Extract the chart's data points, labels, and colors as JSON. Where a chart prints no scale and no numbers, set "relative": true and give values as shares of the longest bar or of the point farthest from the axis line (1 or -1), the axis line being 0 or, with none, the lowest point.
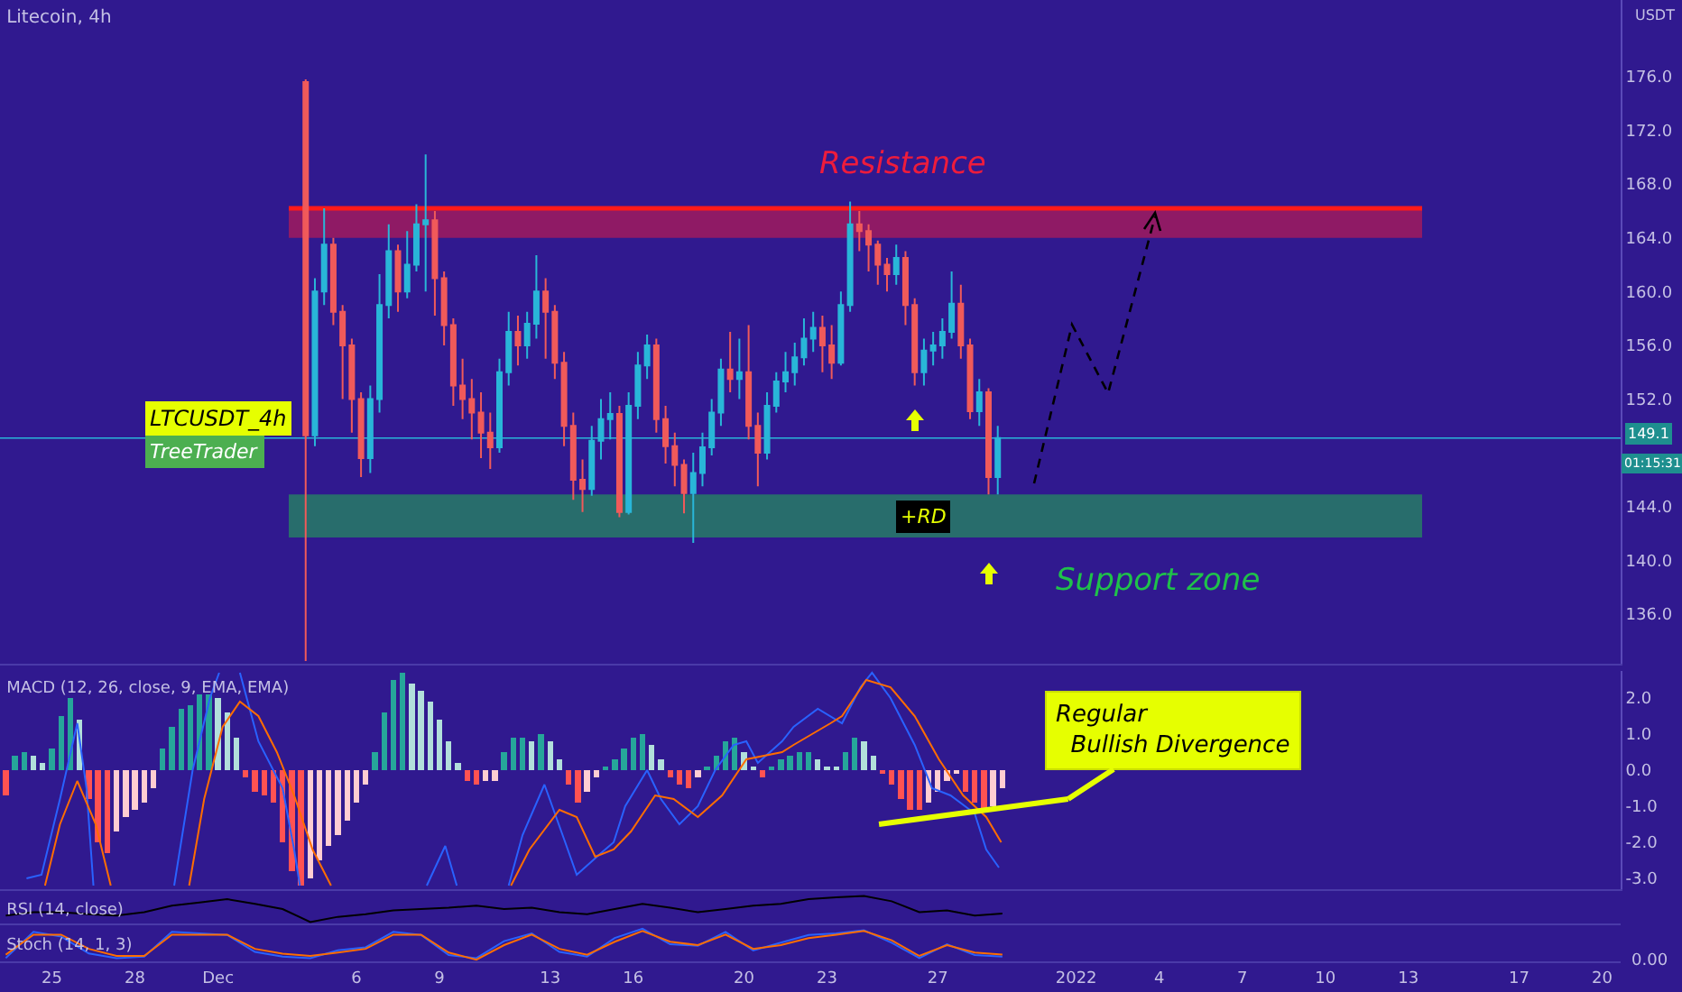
{
  "chart_data": [
    {
      "type": "candlestick",
      "title": "Litecoin, 4h",
      "ylabel": "USDT",
      "tick_labels": "y",
      "xlim": [
        "2021-11-23T03:00",
        "2022-01-20T16:00"
      ],
      "ylim": [
        132.3,
        181.7
      ],
      "yticks": [
        {
          "value": 136,
          "label": "136.0"
        },
        {
          "value": 140,
          "label": "140.0"
        },
        {
          "value": 144,
          "label": "144.0"
        },
        {
          "value": 152,
          "label": "152.0"
        },
        {
          "value": 156,
          "label": "156.0"
        },
        {
          "value": 160,
          "label": "160.0"
        },
        {
          "value": 164,
          "label": "164.0"
        },
        {
          "value": 168,
          "label": "168.0"
        },
        {
          "value": 172,
          "label": "172.0"
        },
        {
          "value": 176,
          "label": "176.0"
        }
      ],
      "x": [
        "2021-12-04T04:00",
        "2021-12-04T12:00",
        "2021-12-04T20:00",
        "2021-12-05T04:00",
        "2021-12-05T12:00",
        "2021-12-05T20:00",
        "2021-12-06T04:00",
        "2021-12-06T12:00",
        "2021-12-06T20:00",
        "2021-12-07T04:00",
        "2021-12-07T12:00",
        "2021-12-07T20:00",
        "2021-12-08T04:00",
        "2021-12-08T12:00",
        "2021-12-08T20:00",
        "2021-12-09T04:00",
        "2021-12-09T12:00",
        "2021-12-09T20:00",
        "2021-12-10T04:00",
        "2021-12-10T12:00",
        "2021-12-10T20:00",
        "2021-12-11T04:00",
        "2021-12-11T12:00",
        "2021-12-11T20:00",
        "2021-12-12T04:00",
        "2021-12-12T12:00",
        "2021-12-12T20:00",
        "2021-12-13T04:00",
        "2021-12-13T12:00",
        "2021-12-13T20:00",
        "2021-12-14T04:00",
        "2021-12-14T12:00",
        "2021-12-14T20:00",
        "2021-12-15T04:00",
        "2021-12-15T12:00",
        "2021-12-15T20:00",
        "2021-12-16T04:00",
        "2021-12-16T12:00",
        "2021-12-16T20:00",
        "2021-12-17T04:00",
        "2021-12-17T12:00",
        "2021-12-17T20:00",
        "2021-12-18T04:00",
        "2021-12-18T12:00",
        "2021-12-18T20:00",
        "2021-12-19T04:00",
        "2021-12-19T12:00",
        "2021-12-19T20:00",
        "2021-12-20T04:00",
        "2021-12-20T12:00",
        "2021-12-20T20:00",
        "2021-12-21T04:00",
        "2021-12-21T12:00",
        "2021-12-21T20:00",
        "2021-12-22T04:00",
        "2021-12-22T12:00",
        "2021-12-22T20:00",
        "2021-12-23T04:00",
        "2021-12-23T12:00",
        "2021-12-23T20:00",
        "2021-12-24T04:00",
        "2021-12-24T12:00",
        "2021-12-24T20:00",
        "2021-12-25T04:00",
        "2021-12-25T12:00",
        "2021-12-25T20:00",
        "2021-12-26T04:00",
        "2021-12-26T12:00",
        "2021-12-26T20:00",
        "2021-12-27T04:00",
        "2021-12-27T12:00",
        "2021-12-27T20:00",
        "2021-12-28T04:00",
        "2021-12-28T12:00",
        "2021-12-28T20:00",
        "2021-12-29T04:00"
      ],
      "ohlc": [
        [
          175.6,
          175.8,
          132.5,
          149.3
        ],
        [
          149.3,
          161,
          148.5,
          160
        ],
        [
          160,
          166.2,
          159,
          163.5
        ],
        [
          163.5,
          164,
          157.5,
          158.5
        ],
        [
          158.5,
          159,
          152,
          156
        ],
        [
          156,
          156.5,
          149.5,
          152
        ],
        [
          152,
          152.5,
          146.2,
          147.6
        ],
        [
          147.6,
          153,
          146.5,
          152
        ],
        [
          152,
          161.3,
          151,
          159
        ],
        [
          159,
          165,
          158,
          163
        ],
        [
          163,
          163.5,
          158.5,
          160
        ],
        [
          160,
          164.5,
          159.5,
          162
        ],
        [
          162,
          166.5,
          161.5,
          165
        ],
        [
          165,
          170.2,
          160,
          165.3
        ],
        [
          165.3,
          166,
          158.2,
          161
        ],
        [
          161,
          161.5,
          156,
          157.5
        ],
        [
          157.5,
          158,
          151.5,
          153
        ],
        [
          153,
          155,
          150.5,
          152
        ],
        [
          152,
          153.5,
          149,
          151
        ],
        [
          151,
          152.5,
          147.6,
          149.5
        ],
        [
          149.5,
          151,
          146.8,
          148.4
        ],
        [
          148.4,
          155,
          148,
          154
        ],
        [
          154,
          158.5,
          153,
          157
        ],
        [
          157,
          158.2,
          154.5,
          156
        ],
        [
          156,
          158.5,
          155,
          157.6
        ],
        [
          157.6,
          162.7,
          156.5,
          160
        ],
        [
          160,
          161,
          155,
          158.5
        ],
        [
          158.5,
          159,
          153.5,
          154.7
        ],
        [
          154.7,
          155.5,
          148.5,
          150
        ],
        [
          150,
          151,
          144.5,
          146
        ],
        [
          146,
          147.5,
          143.6,
          145.3
        ],
        [
          145.3,
          150,
          144.8,
          148.9
        ],
        [
          148.9,
          152,
          147.5,
          150.5
        ],
        [
          150.5,
          152.5,
          149,
          150.9
        ],
        [
          150.9,
          151.5,
          143.2,
          143.6
        ],
        [
          143.6,
          152.5,
          143.4,
          151.5
        ],
        [
          151.5,
          155.5,
          150.5,
          154.5
        ],
        [
          154.5,
          156.8,
          153.5,
          156
        ],
        [
          156,
          156.5,
          149.5,
          150.5
        ],
        [
          150.5,
          151.5,
          147.2,
          148.5
        ],
        [
          148.5,
          149.5,
          145.5,
          147.1
        ],
        [
          147.1,
          147.5,
          143.5,
          145
        ],
        [
          145,
          148,
          141.3,
          146.5
        ],
        [
          146.5,
          149.5,
          145.5,
          148.4
        ],
        [
          148.4,
          152,
          147.8,
          151
        ],
        [
          151,
          155,
          150,
          154.2
        ],
        [
          154.2,
          157,
          152.5,
          153.5
        ],
        [
          153.5,
          156.5,
          152,
          154
        ],
        [
          154,
          157.5,
          149,
          150
        ],
        [
          150,
          151,
          145.5,
          148
        ],
        [
          148,
          152.5,
          147.5,
          151.5
        ],
        [
          151.5,
          154,
          151,
          153.3
        ],
        [
          153.3,
          155.5,
          152.5,
          154
        ],
        [
          154,
          156.2,
          153,
          155.1
        ],
        [
          155.1,
          158,
          154.5,
          156.5
        ],
        [
          156.5,
          158.5,
          155.5,
          157.3
        ],
        [
          157.3,
          158.2,
          154,
          156
        ],
        [
          156,
          157.5,
          153.5,
          154.7
        ],
        [
          154.7,
          160,
          154.5,
          159
        ],
        [
          159,
          166.7,
          158.5,
          165
        ],
        [
          165,
          166,
          163,
          164.5
        ],
        [
          164.5,
          165,
          161.5,
          163.5
        ],
        [
          163.5,
          163.8,
          160.5,
          162
        ],
        [
          162,
          162.5,
          160,
          161.3
        ],
        [
          161.3,
          163.5,
          160.5,
          162.5
        ],
        [
          162.5,
          163,
          157.5,
          159
        ],
        [
          159,
          159.5,
          153,
          154
        ],
        [
          154,
          156.5,
          153,
          155.6
        ],
        [
          155.6,
          157,
          154.5,
          156
        ],
        [
          156,
          158,
          155,
          157
        ],
        [
          157,
          161.5,
          156.5,
          159.1
        ],
        [
          159.1,
          160.5,
          155,
          156
        ],
        [
          156,
          156.5,
          150.5,
          151.1
        ],
        [
          151.1,
          153.5,
          150,
          152.5
        ],
        [
          152.5,
          152.8,
          144.9,
          146.2
        ],
        [
          146.2,
          150,
          144.9,
          149.1
        ]
      ],
      "bands": [
        {
          "axis": "y",
          "from": 164,
          "to": 166.2,
          "label": "Resistance",
          "color": "#ee1c3c"
        },
        {
          "axis": "y",
          "from": 141.7,
          "to": 144.9,
          "label": "Support zone",
          "color": "#1fc24a"
        }
      ],
      "ref_lines": [
        {
          "axis": "y",
          "value": 166.2,
          "color": "#ff1a1a"
        },
        {
          "axis": "y",
          "value": 149.1,
          "label": "149.1",
          "color": "#29b6d8"
        }
      ],
      "annotations": [
        "LTCUSDT_4h",
        "TreeTrader",
        "01:15:31",
        {
          "text": "+RD",
          "x": "2021-12-26T12:00",
          "y": 143.2
        }
      ]
    },
    {
      "type": "bar",
      "title": "MACD (12, 26, close, 9, EMA, EMA)",
      "tick_labels": "y",
      "xlim": [
        "2021-11-23T03:00",
        "2022-01-20T16:00"
      ],
      "ylim": [
        -3.3,
        2.75
      ],
      "yticks": [
        {
          "value": -3,
          "label": "-3.0"
        },
        {
          "value": -2,
          "label": "-2.0"
        },
        {
          "value": -1,
          "label": "-1.0"
        },
        {
          "value": 0,
          "label": "0.0"
        },
        {
          "value": 1,
          "label": "1.0"
        },
        {
          "value": 2,
          "label": "2.0"
        }
      ],
      "x": [
        "2021-11-23T08:00",
        "2021-11-23T16:00",
        "2021-11-24T00:00",
        "2021-11-24T08:00",
        "2021-11-24T16:00",
        "2021-11-25T00:00",
        "2021-11-25T08:00",
        "2021-11-25T16:00",
        "2021-11-26T00:00",
        "2021-11-26T08:00",
        "2021-11-26T16:00",
        "2021-11-27T00:00",
        "2021-11-27T08:00",
        "2021-11-27T16:00",
        "2021-11-28T00:00",
        "2021-11-28T08:00",
        "2021-11-28T16:00",
        "2021-11-29T00:00",
        "2021-11-29T08:00",
        "2021-11-29T16:00",
        "2021-11-30T00:00",
        "2021-11-30T08:00",
        "2021-11-30T16:00",
        "2021-12-01T00:00",
        "2021-12-01T08:00",
        "2021-12-01T16:00",
        "2021-12-02T00:00",
        "2021-12-02T08:00",
        "2021-12-02T16:00",
        "2021-12-03T00:00",
        "2021-12-03T08:00",
        "2021-12-03T16:00",
        "2021-12-04T00:00",
        "2021-12-04T08:00",
        "2021-12-04T16:00",
        "2021-12-05T00:00",
        "2021-12-05T08:00",
        "2021-12-05T16:00",
        "2021-12-06T00:00",
        "2021-12-06T08:00",
        "2021-12-06T16:00",
        "2021-12-07T00:00",
        "2021-12-07T08:00",
        "2021-12-07T16:00",
        "2021-12-08T00:00",
        "2021-12-08T08:00",
        "2021-12-08T16:00",
        "2021-12-09T00:00",
        "2021-12-09T08:00",
        "2021-12-09T16:00",
        "2021-12-10T00:00",
        "2021-12-10T08:00",
        "2021-12-10T16:00",
        "2021-12-11T00:00",
        "2021-12-11T08:00",
        "2021-12-11T16:00",
        "2021-12-12T00:00",
        "2021-12-12T08:00",
        "2021-12-12T16:00",
        "2021-12-13T00:00",
        "2021-12-13T08:00",
        "2021-12-13T16:00",
        "2021-12-14T00:00",
        "2021-12-14T08:00",
        "2021-12-14T16:00",
        "2021-12-15T00:00",
        "2021-12-15T08:00",
        "2021-12-15T16:00",
        "2021-12-16T00:00",
        "2021-12-16T08:00",
        "2021-12-16T16:00",
        "2021-12-17T00:00",
        "2021-12-17T08:00",
        "2021-12-17T16:00",
        "2021-12-18T00:00",
        "2021-12-18T08:00",
        "2021-12-18T16:00",
        "2021-12-19T00:00",
        "2021-12-19T08:00",
        "2021-12-19T16:00",
        "2021-12-20T00:00",
        "2021-12-20T08:00",
        "2021-12-20T16:00",
        "2021-12-21T00:00",
        "2021-12-21T08:00",
        "2021-12-21T16:00",
        "2021-12-22T00:00",
        "2021-12-22T08:00",
        "2021-12-22T16:00",
        "2021-12-23T00:00",
        "2021-12-23T08:00",
        "2021-12-23T16:00",
        "2021-12-24T00:00",
        "2021-12-24T08:00",
        "2021-12-24T16:00",
        "2021-12-25T00:00",
        "2021-12-25T08:00",
        "2021-12-25T16:00",
        "2021-12-26T00:00",
        "2021-12-26T08:00",
        "2021-12-26T16:00",
        "2021-12-27T00:00",
        "2021-12-27T08:00",
        "2021-12-27T16:00",
        "2021-12-28T00:00",
        "2021-12-28T08:00",
        "2021-12-28T16:00",
        "2021-12-29T00:00",
        "2021-12-29T08:00"
      ],
      "series": [
        {
          "type": "bar",
          "values": [
            -0.7,
            0.4,
            0.5,
            0.4,
            0.2,
            0.6,
            1.5,
            2.0,
            1.4,
            -0.8,
            -2.0,
            -2.3,
            -1.7,
            -1.3,
            -1.1,
            -0.9,
            -0.5,
            0.6,
            1.2,
            1.7,
            1.8,
            2.1,
            2.1,
            2.0,
            1.6,
            0.9,
            -0.2,
            -0.6,
            -0.7,
            -0.9,
            -2.0,
            -2.8,
            -3.2,
            -3.0,
            -2.5,
            -2.1,
            -1.8,
            -1.4,
            -0.9,
            -0.4,
            0.5,
            1.6,
            2.5,
            2.7,
            2.4,
            2.2,
            1.9,
            1.4,
            0.8,
            0.2,
            -0.3,
            -0.4,
            -0.3,
            -0.3,
            0.5,
            0.9,
            0.9,
            0.8,
            1.0,
            0.8,
            0.3,
            -0.4,
            -0.9,
            -0.6,
            -0.2,
            0.1,
            0.3,
            0.6,
            0.9,
            1.0,
            0.7,
            0.3,
            -0.2,
            -0.4,
            -0.5,
            -0.2,
            0.1,
            0.4,
            0.8,
            0.9,
            0.5,
            0.1,
            -0.2,
            0.1,
            0.3,
            0.4,
            0.5,
            0.5,
            0.3,
            0.1,
            0.1,
            0.5,
            0.9,
            0.8,
            0.4,
            -0.1,
            -0.4,
            -0.8,
            -1.1,
            -1.1,
            -0.9,
            -0.6,
            -0.3,
            -0.1,
            -0.6,
            -0.9,
            -1.1,
            -1.0,
            -0.5
          ],
          "colors": [
            "#ff5252",
            "#26a69a",
            "#26a69a",
            "#b2dfdb",
            "#b2dfdb",
            "#26a69a",
            "#26a69a",
            "#26a69a",
            "#b2dfdb",
            "#ff5252",
            "#ff5252",
            "#ff5252",
            "#ffcdd2",
            "#ffcdd2",
            "#ffcdd2",
            "#ffcdd2",
            "#ffcdd2",
            "#26a69a",
            "#26a69a",
            "#26a69a",
            "#26a69a",
            "#26a69a",
            "#26a69a",
            "#b2dfdb",
            "#b2dfdb",
            "#b2dfdb",
            "#ff5252",
            "#ff5252",
            "#ff5252",
            "#ff5252",
            "#ff5252",
            "#ff5252",
            "#ff5252",
            "#ffcdd2",
            "#ffcdd2",
            "#ffcdd2",
            "#ffcdd2",
            "#ffcdd2",
            "#ffcdd2",
            "#ffcdd2",
            "#26a69a",
            "#26a69a",
            "#26a69a",
            "#26a69a",
            "#b2dfdb",
            "#b2dfdb",
            "#b2dfdb",
            "#b2dfdb",
            "#b2dfdb",
            "#b2dfdb",
            "#ff5252",
            "#ff5252",
            "#ffcdd2",
            "#ffcdd2",
            "#26a69a",
            "#26a69a",
            "#26a69a",
            "#b2dfdb",
            "#26a69a",
            "#b2dfdb",
            "#b2dfdb",
            "#ff5252",
            "#ff5252",
            "#ffcdd2",
            "#ffcdd2",
            "#26a69a",
            "#26a69a",
            "#26a69a",
            "#26a69a",
            "#26a69a",
            "#b2dfdb",
            "#b2dfdb",
            "#ff5252",
            "#ff5252",
            "#ff5252",
            "#ffcdd2",
            "#26a69a",
            "#26a69a",
            "#26a69a",
            "#26a69a",
            "#b2dfdb",
            "#b2dfdb",
            "#ff5252",
            "#26a69a",
            "#26a69a",
            "#26a69a",
            "#26a69a",
            "#26a69a",
            "#b2dfdb",
            "#b2dfdb",
            "#b2dfdb",
            "#26a69a",
            "#26a69a",
            "#b2dfdb",
            "#b2dfdb",
            "#ff5252",
            "#ff5252",
            "#ff5252",
            "#ff5252",
            "#ff5252",
            "#ffcdd2",
            "#ffcdd2",
            "#ffcdd2",
            "#ffcdd2",
            "#ff5252",
            "#ff5252",
            "#ff5252",
            "#ffcdd2",
            "#ffcdd2"
          ]
        },
        {
          "type": "line",
          "color": "#2962ff",
          "x": [
            "2021-11-24T02:00",
            "2021-11-24T15:00",
            "2021-11-25T07:00",
            "2021-11-25T22:00",
            "2021-11-26T06:00",
            "2021-11-26T12:00",
            "2021-11-28T00:00",
            "2021-11-29T10:00",
            "2021-11-30T02:00",
            "2021-11-30T17:00",
            "2021-12-01T01:00",
            "2021-12-01T10:00",
            "2021-12-01T19:00",
            "2021-12-02T11:00",
            "2021-12-03T08:00",
            "2021-12-03T18:00",
            "2021-12-03T23:00",
            "2021-12-06T00:00",
            "2021-12-08T13:00",
            "2021-12-09T05:00",
            "2021-12-09T15:00",
            "2021-12-10T12:00",
            "2021-12-11T12:00",
            "2021-12-12T00:00",
            "2021-12-12T19:00",
            "2021-12-13T13:00",
            "2021-12-13T23:00",
            "2021-12-14T20:00",
            "2021-12-15T07:00",
            "2021-12-15T17:00",
            "2021-12-16T12:00",
            "2021-12-17T00:00",
            "2021-12-17T16:00",
            "2021-12-18T08:00",
            "2021-12-18T23:00",
            "2021-12-19T15:00",
            "2021-12-20T02:00",
            "2021-12-20T12:00",
            "2021-12-21T09:00",
            "2021-12-21T19:00",
            "2021-12-22T16:00",
            "2021-12-23T13:00",
            "2021-12-24T05:00",
            "2021-12-24T15:00",
            "2021-12-25T07:00",
            "2021-12-26T04:00",
            "2021-12-26T19:00",
            "2021-12-27T11:00",
            "2021-12-28T08:00",
            "2021-12-28T18:00",
            "2021-12-29T05:00"
          ],
          "values": [
            -3.0,
            -2.9,
            -0.8,
            1.3,
            -0.5,
            -3.2,
            null,
            -3.2,
            0.0,
            2.0,
            2.7,
            null,
            2.7,
            0.8,
            -0.5,
            -2.2,
            -3.2,
            null,
            -3.2,
            -2.1,
            -3.2,
            null,
            -3.2,
            -1.8,
            -0.4,
            -2.0,
            -2.9,
            -2.3,
            -2.0,
            -1.0,
            0.0,
            -0.8,
            -1.5,
            -1.0,
            0.0,
            0.7,
            0.8,
            0.2,
            0.8,
            1.2,
            1.7,
            1.3,
            2.3,
            2.7,
            2.0,
            0.7,
            -0.5,
            -0.7,
            -1.2,
            -2.2,
            -2.7
          ]
        },
        {
          "type": "line",
          "color": "#ff6d00",
          "x": [
            "2021-11-24T18:00",
            "2021-11-25T07:00",
            "2021-11-25T22:00",
            "2021-11-26T14:00",
            "2021-11-27T03:00",
            "2021-11-28T12:00",
            "2021-11-29T23:00",
            "2021-11-30T12:00",
            "2021-12-01T04:00",
            "2021-12-01T19:00",
            "2021-12-02T11:00",
            "2021-12-03T03:00",
            "2021-12-03T18:00",
            "2021-12-04T10:00",
            "2021-12-05T02:00",
            "2021-12-07T00:00",
            "2021-12-11T14:00",
            "2021-12-12T06:00",
            "2021-12-13T08:00",
            "2021-12-13T23:00",
            "2021-12-14T15:00",
            "2021-12-15T07:00",
            "2021-12-15T22:00",
            "2021-12-16T19:00",
            "2021-12-17T11:00",
            "2021-12-18T08:00",
            "2021-12-19T05:00",
            "2021-12-20T02:00",
            "2021-12-21T09:00",
            "2021-12-21T19:00",
            "2021-12-23T03:00",
            "2021-12-23T13:00",
            "2021-12-24T10:00",
            "2021-12-25T07:00",
            "2021-12-26T04:00",
            "2021-12-27T01:00",
            "2021-12-27T22:00",
            "2021-12-28T18:00",
            "2021-12-29T07:00"
          ],
          "values": [
            -3.2,
            -1.5,
            -0.3,
            -1.5,
            -3.2,
            null,
            -3.2,
            -0.8,
            1.2,
            1.9,
            1.5,
            0.5,
            -0.7,
            -2.2,
            -3.2,
            null,
            -3.2,
            -2.2,
            -1.1,
            -1.3,
            -2.4,
            -2.2,
            -1.7,
            -0.7,
            -0.8,
            -1.3,
            -0.7,
            0.3,
            0.5,
            0.7,
            1.3,
            1.5,
            2.5,
            2.3,
            1.5,
            0.3,
            -0.7,
            -1.3,
            -2.0
          ]
        },
        {
          "type": "line",
          "color": "#e6ff00",
          "x": [
            "2021-12-24T21:00",
            "2021-12-31T17:00"
          ],
          "values": [
            -1.5,
            -0.8
          ]
        }
      ],
      "annotations": [
        {
          "text": "Regular\n  Bullish Divergence",
          "x": "2021-12-31T17:00",
          "y": -0.8
        }
      ]
    },
    {
      "type": "line",
      "title": "RSI (14, close)",
      "relative": true,
      "tick_labels": false,
      "xlim": [
        "2021-11-23T03:00",
        "2022-01-20T16:00"
      ],
      "x": [
        "2021-11-23T08:00",
        "2021-11-24T08:00",
        "2021-11-25T08:00",
        "2021-11-26T08:00",
        "2021-11-27T08:00",
        "2021-11-28T08:00",
        "2021-11-29T08:00",
        "2021-11-30T08:00",
        "2021-12-01T08:00",
        "2021-12-02T08:00",
        "2021-12-03T08:00",
        "2021-12-04T08:00",
        "2021-12-05T08:00",
        "2021-12-06T08:00",
        "2021-12-07T08:00",
        "2021-12-08T08:00",
        "2021-12-09T08:00",
        "2021-12-10T08:00",
        "2021-12-11T08:00",
        "2021-12-12T08:00",
        "2021-12-13T08:00",
        "2021-12-14T08:00",
        "2021-12-15T08:00",
        "2021-12-16T08:00",
        "2021-12-17T08:00",
        "2021-12-18T08:00",
        "2021-12-19T08:00",
        "2021-12-20T08:00",
        "2021-12-21T08:00",
        "2021-12-22T08:00",
        "2021-12-23T08:00",
        "2021-12-24T08:00",
        "2021-12-25T08:00",
        "2021-12-26T08:00",
        "2021-12-27T08:00",
        "2021-12-28T08:00",
        "2021-12-29T08:00"
      ],
      "series": [
        {
          "color": "#000000",
          "values": [
            0.25,
            0.38,
            0.38,
            0.3,
            0.25,
            0.38,
            0.63,
            0.75,
            0.88,
            0.7,
            0.5,
            0,
            0.2,
            0.3,
            0.45,
            0.5,
            0.55,
            0.63,
            0.5,
            0.55,
            0.38,
            0.3,
            0.5,
            0.7,
            0.55,
            0.38,
            0.5,
            0.63,
            0.7,
            0.88,
            0.95,
            1,
            0.8,
            0.38,
            0.45,
            0.25,
            0.33
          ]
        }
      ]
    },
    {
      "type": "line",
      "title": "Stoch (14, 1, 3)",
      "relative": true,
      "tick_labels": "x",
      "xlim": [
        "2021-11-23T03:00",
        "2022-01-20T16:00"
      ],
      "xticks": [
        {
          "value": "2021-11-25",
          "label": "25"
        },
        {
          "value": "2021-11-28",
          "label": "28"
        },
        {
          "value": "2021-12-01",
          "label": "Dec"
        },
        {
          "value": "2021-12-06",
          "label": "6"
        },
        {
          "value": "2021-12-09",
          "label": "9"
        },
        {
          "value": "2021-12-13",
          "label": "13"
        },
        {
          "value": "2021-12-16",
          "label": "16"
        },
        {
          "value": "2021-12-20",
          "label": "20"
        },
        {
          "value": "2021-12-23",
          "label": "23"
        },
        {
          "value": "2021-12-27",
          "label": "27"
        },
        {
          "value": "2022-01-01",
          "label": "2022"
        },
        {
          "value": "2022-01-04",
          "label": "4"
        },
        {
          "value": "2022-01-07",
          "label": "7"
        },
        {
          "value": "2022-01-10",
          "label": "10"
        },
        {
          "value": "2022-01-13",
          "label": "13"
        },
        {
          "value": "2022-01-17",
          "label": "17"
        },
        {
          "value": "2022-01-20",
          "label": "20"
        }
      ],
      "x": [
        "2021-11-23T08:00",
        "2021-11-24T08:00",
        "2021-11-25T08:00",
        "2021-11-26T08:00",
        "2021-11-27T08:00",
        "2021-11-28T08:00",
        "2021-11-29T08:00",
        "2021-11-30T08:00",
        "2021-12-01T08:00",
        "2021-12-02T08:00",
        "2021-12-03T08:00",
        "2021-12-04T08:00",
        "2021-12-05T08:00",
        "2021-12-06T08:00",
        "2021-12-07T08:00",
        "2021-12-08T08:00",
        "2021-12-09T08:00",
        "2021-12-10T08:00",
        "2021-12-11T08:00",
        "2021-12-12T08:00",
        "2021-12-13T08:00",
        "2021-12-14T08:00",
        "2021-12-15T08:00",
        "2021-12-16T08:00",
        "2021-12-17T08:00",
        "2021-12-18T08:00",
        "2021-12-19T08:00",
        "2021-12-20T08:00",
        "2021-12-21T08:00",
        "2021-12-22T08:00",
        "2021-12-23T08:00",
        "2021-12-24T08:00",
        "2021-12-25T08:00",
        "2021-12-26T08:00",
        "2021-12-27T08:00",
        "2021-12-28T08:00",
        "2021-12-29T08:00"
      ],
      "series": [
        {
          "color": "#2962ff",
          "values": [
            0.05,
            0.9,
            0.75,
            0.2,
            0.05,
            0.1,
            0.9,
            0.85,
            0.8,
            0.25,
            0.1,
            0.05,
            0.3,
            0.4,
            0.9,
            0.8,
            0.15,
            0.05,
            0.6,
            0.85,
            0.25,
            0.1,
            0.7,
            1,
            0.5,
            0.45,
            0.9,
            0.3,
            0.55,
            0.8,
            0.85,
            0.95,
            0.55,
            0.05,
            0.5,
            0.15,
            0.1
          ]
        },
        {
          "color": "#ff6d00",
          "values": [
            0.16,
            0.81,
            0.81,
            0.35,
            0.12,
            0.12,
            0.81,
            0.81,
            0.81,
            0.35,
            0.19,
            0.12,
            0.23,
            0.35,
            0.81,
            0.81,
            0.23,
            0,
            0.47,
            0.81,
            0.35,
            0.16,
            0.58,
            0.93,
            0.58,
            0.47,
            0.81,
            0.35,
            0.47,
            0.7,
            0.81,
            0.93,
            0.63,
            0.12,
            0.47,
            0.23,
            0.16
          ]
        }
      ],
      "annotations": [
        "0.00"
      ]
    }
  ]
}
